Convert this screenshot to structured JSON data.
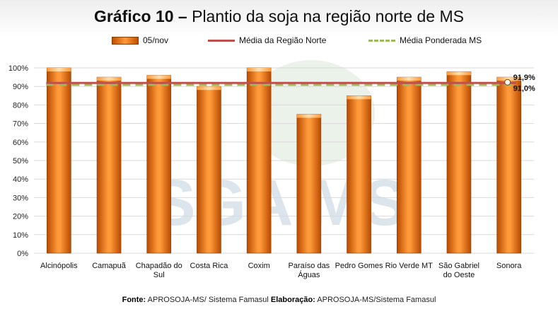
{
  "title": {
    "bold": "Gráfico 10 –",
    "rest": "Plantio da soja na região norte de MS"
  },
  "legend": {
    "bar_label": "05/nov",
    "line_label": "Média da Região Norte",
    "dash_label": "Média Ponderada MS"
  },
  "watermark": "SGA MS",
  "footer": {
    "fonte_label": "Fonte:",
    "fonte_text": "APROSOJA-MS/ Sistema Famasul",
    "elab_label": "Elaboração:",
    "elab_text": "APROSOJA-MS/Sistema Famasul"
  },
  "colors": {
    "bar_dark": "#c04f00",
    "bar_light": "#ffa040",
    "line": "#c0504d",
    "dash": "#9bbb59",
    "grid": "#d9d9d9"
  },
  "chart_data": {
    "type": "bar",
    "categories": [
      "Alcinópolis",
      "Camapuã",
      "Chapadão do Sul",
      "Costa Rica",
      "Coxim",
      "Paraíso das Águas",
      "Pedro Gomes",
      "Rio Verde MT",
      "São Gabriel do Oeste",
      "Sonora"
    ],
    "category_lines": [
      [
        "Alcinópolis"
      ],
      [
        "Camapuã"
      ],
      [
        "Chapadão do",
        "Sul"
      ],
      [
        "Costa Rica"
      ],
      [
        "Coxim"
      ],
      [
        "Paraíso das",
        "Águas"
      ],
      [
        "Pedro Gomes"
      ],
      [
        "Rio Verde MT"
      ],
      [
        "São Gabriel",
        "do Oeste"
      ],
      [
        "Sonora"
      ]
    ],
    "series": [
      {
        "name": "05/nov",
        "values": [
          100,
          95,
          96,
          90,
          100,
          75,
          85,
          95,
          98,
          95
        ]
      }
    ],
    "reference_lines": [
      {
        "name": "Média da Região Norte",
        "value": 91.9,
        "label": "91,9%"
      },
      {
        "name": "Média Ponderada MS",
        "value": 91.0,
        "label": "91,0%"
      }
    ],
    "y_ticks": [
      "0%",
      "10%",
      "20%",
      "30%",
      "40%",
      "50%",
      "60%",
      "70%",
      "80%",
      "90%",
      "100%"
    ],
    "ylim": [
      0,
      100
    ],
    "grid": true,
    "legend_position": "top"
  }
}
